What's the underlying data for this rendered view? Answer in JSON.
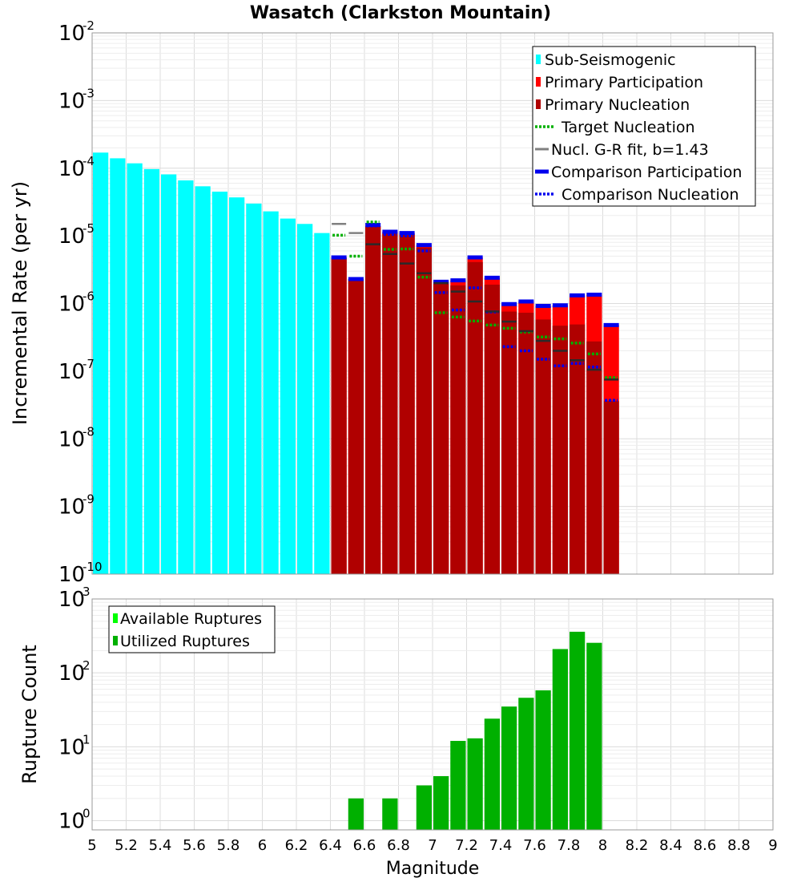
{
  "chart_data": [
    {
      "type": "bar",
      "title": "Wasatch (Clarkston Mountain)",
      "ylabel": "Incremental Rate (per yr)",
      "xlabel": "",
      "yscale": "log",
      "ylim": [
        1e-10,
        0.01
      ],
      "xlim": [
        5,
        9
      ],
      "legend": {
        "position": "top-right",
        "items": [
          {
            "label": "Sub-Seismogenic",
            "color": "#00ffff",
            "style": "box"
          },
          {
            "label": "Primary Participation",
            "color": "#ff0000",
            "style": "box"
          },
          {
            "label": "Primary Nucleation",
            "color": "#b00000",
            "style": "box"
          },
          {
            "label": "Target Nucleation",
            "color": "#00b000",
            "style": "dotted"
          },
          {
            "label": "Nucl. G-R fit, b=1.43",
            "color": "#808080",
            "style": "solid"
          },
          {
            "label": "Comparison Participation",
            "color": "#0000ee",
            "style": "thick"
          },
          {
            "label": "Comparison Nucleation",
            "color": "#0000ee",
            "style": "dotted"
          }
        ]
      },
      "series": [
        {
          "name": "Sub-Seismogenic",
          "color": "#00ffff",
          "x": [
            5.05,
            5.15,
            5.25,
            5.35,
            5.45,
            5.55,
            5.65,
            5.75,
            5.85,
            5.95,
            6.05,
            6.15,
            6.25,
            6.35
          ],
          "values": [
            0.00017,
            0.00014,
            0.000118,
            9.7e-05,
            8.1e-05,
            6.6e-05,
            5.4e-05,
            4.5e-05,
            3.7e-05,
            3e-05,
            2.3e-05,
            1.8e-05,
            1.5e-05,
            1.1e-05
          ]
        },
        {
          "name": "Primary Participation",
          "color": "#ff0000",
          "x": [
            6.45,
            6.55,
            6.65,
            6.75,
            6.85,
            6.95,
            7.05,
            7.15,
            7.25,
            7.35,
            7.45,
            7.55,
            7.65,
            7.75,
            7.85,
            7.95,
            8.05
          ],
          "values": [
            4.8e-06,
            2.3e-06,
            1.4e-05,
            1.15e-05,
            1.1e-05,
            7.3e-06,
            2.1e-06,
            2.2e-06,
            4.8e-06,
            2.4e-06,
            9.8e-07,
            1.07e-06,
            9.2e-07,
            9.4e-07,
            1.32e-06,
            1.35e-06,
            4.8e-07
          ]
        },
        {
          "name": "Primary Nucleation",
          "color": "#b00000",
          "x": [
            6.45,
            6.55,
            6.65,
            6.75,
            6.85,
            6.95,
            7.05,
            7.15,
            7.25,
            7.35,
            7.45,
            7.55,
            7.65,
            7.75,
            7.85,
            7.95,
            8.05
          ],
          "values": [
            4.8e-06,
            2.3e-06,
            1.4e-05,
            1.1e-05,
            1.05e-05,
            6.7e-06,
            1.95e-06,
            1.85e-06,
            4.1e-06,
            1.9e-06,
            7.6e-07,
            7.3e-07,
            5.8e-07,
            4.7e-07,
            4.9e-07,
            2.75e-07,
            3.6e-08
          ]
        },
        {
          "name": "Target Nucleation",
          "color": "#00b000",
          "x": [
            6.45,
            6.55,
            6.65,
            6.75,
            6.85,
            6.95,
            7.05,
            7.15,
            7.25,
            7.35,
            7.45,
            7.55,
            7.65,
            7.75,
            7.85,
            7.95,
            8.05
          ],
          "values": [
            1.02e-05,
            5e-06,
            1.6e-05,
            6.3e-06,
            6.4e-06,
            2.45e-06,
            7.3e-07,
            6.3e-07,
            5.5e-07,
            4.8e-07,
            4.3e-07,
            3.8e-07,
            3.2e-07,
            3e-07,
            2.6e-07,
            1.8e-07,
            8e-08
          ]
        },
        {
          "name": "Nucl. G-R fit, b=1.43",
          "color": "#808080",
          "x": [
            6.45,
            6.55,
            6.65,
            6.75,
            6.85,
            6.95,
            7.05,
            7.15,
            7.25,
            7.35,
            7.45,
            7.55,
            7.65,
            7.75,
            7.85,
            7.95,
            8.05
          ],
          "values": [
            1.5e-05,
            1.1e-05,
            7.5e-06,
            5.4e-06,
            3.9e-06,
            2.8e-06,
            2e-06,
            1.5e-06,
            1.07e-06,
            7.6e-07,
            5.4e-07,
            3.9e-07,
            2.8e-07,
            2e-07,
            1.45e-07,
            1.05e-07,
            7.5e-08
          ]
        },
        {
          "name": "Comparison Participation",
          "color": "#0000ee",
          "x": [
            6.45,
            6.55,
            6.65,
            6.75,
            6.85,
            6.95,
            7.05,
            7.15,
            7.25,
            7.35,
            7.45,
            7.55,
            7.65,
            7.75,
            7.85,
            7.95,
            8.05
          ],
          "values": [
            4.8e-06,
            2.3e-06,
            1.45e-05,
            1.15e-05,
            1.1e-05,
            7.3e-06,
            2.1e-06,
            2.2e-06,
            4.8e-06,
            2.4e-06,
            9.8e-07,
            1.07e-06,
            9.2e-07,
            9.4e-07,
            1.32e-06,
            1.35e-06,
            4.8e-07
          ]
        },
        {
          "name": "Comparison Nucleation",
          "color": "#0000ee",
          "x": [
            6.45,
            6.55,
            6.65,
            6.75,
            6.85,
            6.95,
            7.05,
            7.15,
            7.25,
            7.35,
            7.45,
            7.55,
            7.65,
            7.75,
            7.85,
            7.95,
            8.05
          ],
          "values": [
            4.8e-06,
            2.3e-06,
            1.4e-05,
            1.05e-05,
            1e-05,
            6e-06,
            1.45e-06,
            8e-07,
            1.7e-06,
            7.5e-07,
            2.3e-07,
            2e-07,
            1.5e-07,
            1.2e-07,
            1.3e-07,
            1.15e-07,
            3.7e-08
          ]
        }
      ]
    },
    {
      "type": "bar",
      "title": "",
      "ylabel": "Rupture Count",
      "xlabel": "Magnitude",
      "yscale": "log",
      "ylim": [
        0.75,
        1000
      ],
      "xlim": [
        5,
        9
      ],
      "x_ticks": [
        "5",
        "5.2",
        "5.4",
        "5.6",
        "5.8",
        "6",
        "6.2",
        "6.4",
        "6.6",
        "6.8",
        "7",
        "7.2",
        "7.4",
        "7.6",
        "7.8",
        "8",
        "8.2",
        "8.4",
        "8.6",
        "8.8",
        "9"
      ],
      "legend": {
        "position": "top-left",
        "items": [
          {
            "label": "Available Ruptures",
            "color": "#00ff00",
            "style": "box"
          },
          {
            "label": "Utilized Ruptures",
            "color": "#00b000",
            "style": "box"
          }
        ]
      },
      "series": [
        {
          "name": "Utilized Ruptures",
          "color": "#00b000",
          "x": [
            6.55,
            6.75,
            6.95,
            7.05,
            7.15,
            7.25,
            7.35,
            7.45,
            7.55,
            7.65,
            7.75,
            7.85,
            7.95
          ],
          "values": [
            2,
            2,
            3,
            4,
            12,
            13,
            24,
            35,
            46,
            58,
            210,
            360,
            255
          ]
        }
      ]
    }
  ]
}
